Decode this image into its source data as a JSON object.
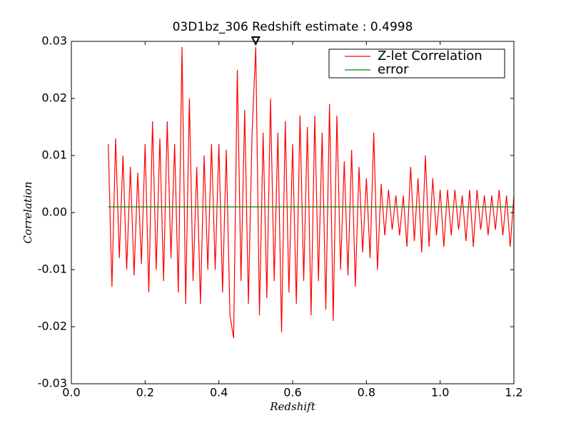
{
  "chart_data": {
    "type": "line",
    "title": "03D1bz_306 Redshift estimate : 0.4998",
    "x_label": "Redshift",
    "y_label": "Correlation",
    "xlim": [
      0,
      1.2
    ],
    "ylim": [
      -0.03,
      0.03
    ],
    "xticks": [
      {
        "value": 0,
        "label": "0.0"
      },
      0.2,
      0.4,
      0.6,
      0.8,
      {
        "value": 1,
        "label": "1.0"
      },
      1.2
    ],
    "yticks": [
      -0.03,
      -0.02,
      -0.01,
      {
        "value": 0,
        "label": "0.00"
      },
      0.01,
      0.02,
      0.03
    ],
    "grid": false,
    "legend": "upper right",
    "x": [
      0.1,
      0.11,
      0.12,
      0.13,
      0.14,
      0.15,
      0.16,
      0.17,
      0.18,
      0.19,
      0.2,
      0.21,
      0.22,
      0.23,
      0.24,
      0.25,
      0.26,
      0.27,
      0.28,
      0.29,
      0.3,
      0.31,
      0.32,
      0.33,
      0.34,
      0.35,
      0.36,
      0.37,
      0.38,
      0.39,
      0.4,
      0.41,
      0.42,
      0.43,
      0.44,
      0.45,
      0.46,
      0.47,
      0.48,
      0.49,
      0.5,
      0.51,
      0.52,
      0.53,
      0.54,
      0.55,
      0.56,
      0.57,
      0.58,
      0.59,
      0.6,
      0.61,
      0.62,
      0.63,
      0.64,
      0.65,
      0.66,
      0.67,
      0.68,
      0.69,
      0.7,
      0.71,
      0.72,
      0.73,
      0.74,
      0.75,
      0.76,
      0.77,
      0.78,
      0.79,
      0.8,
      0.81,
      0.82,
      0.83,
      0.84,
      0.85,
      0.86,
      0.87,
      0.88,
      0.89,
      0.9,
      0.91,
      0.92,
      0.93,
      0.94,
      0.95,
      0.96,
      0.97,
      0.98,
      0.99,
      1.0,
      1.01,
      1.02,
      1.03,
      1.04,
      1.05,
      1.06,
      1.07,
      1.08,
      1.09,
      1.1,
      1.11,
      1.12,
      1.13,
      1.14,
      1.15,
      1.16,
      1.17,
      1.18,
      1.19,
      1.2
    ],
    "series": [
      {
        "name": "Z-let Correlation",
        "color": "#ff0000",
        "values": [
          0.012,
          -0.013,
          0.013,
          -0.008,
          0.01,
          -0.01,
          0.008,
          -0.011,
          0.007,
          -0.009,
          0.012,
          -0.014,
          0.016,
          -0.01,
          0.013,
          -0.012,
          0.016,
          -0.008,
          0.012,
          -0.014,
          0.029,
          -0.016,
          0.02,
          -0.012,
          0.008,
          -0.016,
          0.01,
          -0.01,
          0.012,
          -0.01,
          0.012,
          -0.014,
          0.011,
          -0.018,
          -0.022,
          0.025,
          -0.012,
          0.018,
          -0.016,
          0.014,
          0.029,
          -0.018,
          0.014,
          -0.015,
          0.02,
          -0.012,
          0.014,
          -0.021,
          0.016,
          -0.014,
          0.012,
          -0.016,
          0.017,
          -0.012,
          0.015,
          -0.018,
          0.017,
          -0.012,
          0.014,
          -0.017,
          0.019,
          -0.019,
          0.017,
          -0.01,
          0.009,
          -0.011,
          0.011,
          -0.013,
          0.008,
          -0.007,
          0.006,
          -0.008,
          0.014,
          -0.01,
          0.005,
          -0.004,
          0.004,
          -0.003,
          0.003,
          -0.004,
          0.003,
          -0.006,
          0.008,
          -0.005,
          0.006,
          -0.007,
          0.01,
          -0.006,
          0.006,
          -0.004,
          0.004,
          -0.006,
          0.004,
          -0.004,
          0.004,
          -0.003,
          0.003,
          -0.005,
          0.004,
          -0.006,
          0.004,
          -0.003,
          0.003,
          -0.004,
          0.003,
          -0.003,
          0.004,
          -0.004,
          0.003,
          -0.006,
          0.003
        ]
      },
      {
        "name": "error",
        "color": "#008000",
        "x": [
          0.1,
          1.2
        ],
        "values": [
          0.001,
          0.001
        ]
      }
    ],
    "marker": {
      "x": 0.4998,
      "y": 0.03,
      "color": "#000000"
    }
  }
}
